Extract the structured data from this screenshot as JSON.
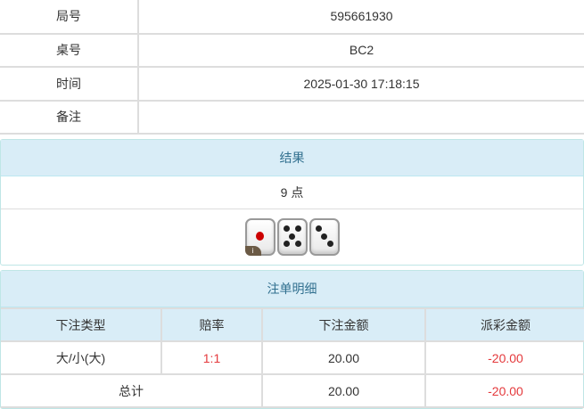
{
  "info": [
    {
      "label": "局号",
      "value": "595661930"
    },
    {
      "label": "桌号",
      "value": "BC2"
    },
    {
      "label": "时间",
      "value": "2025-01-30 17:18:15"
    },
    {
      "label": "备注",
      "value": ""
    }
  ],
  "result": {
    "title": "结果",
    "points": "9 点",
    "dice": [
      1,
      5,
      3
    ],
    "badge": "i"
  },
  "bets": {
    "title": "注单明细",
    "columns": [
      "下注类型",
      "赔率",
      "下注金额",
      "派彩金额"
    ],
    "rows": [
      {
        "type": "大/小(大)",
        "odds": "1:1",
        "amount": "20.00",
        "payout": "-20.00"
      }
    ],
    "total": {
      "label": "总计",
      "amount": "20.00",
      "payout": "-20.00"
    }
  },
  "colors": {
    "header_bg": "#d9edf7",
    "header_text": "#31708f",
    "negative": "#e4393c"
  }
}
